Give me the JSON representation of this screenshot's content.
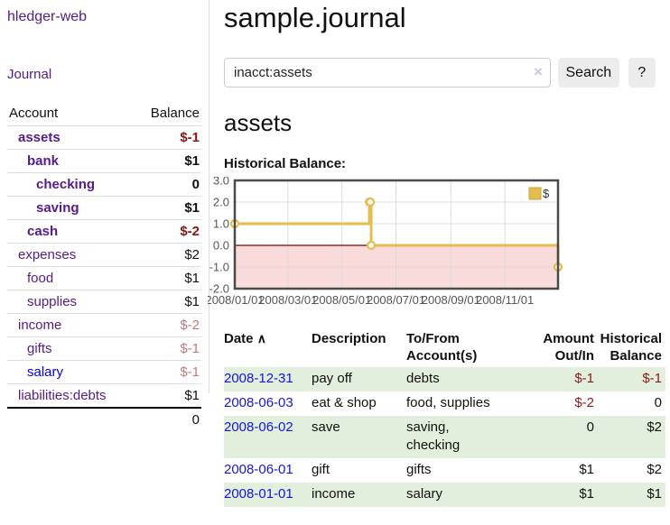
{
  "app": {
    "title": "hledger-web"
  },
  "sidebar": {
    "journal_link": "Journal",
    "headers": {
      "account": "Account",
      "balance": "Balance"
    },
    "accounts": [
      {
        "label": "assets",
        "balance": "$-1",
        "level": 1,
        "bold": true,
        "neg": true,
        "unvisited": false
      },
      {
        "label": "bank",
        "balance": "$1",
        "level": 2,
        "bold": true,
        "neg": false,
        "unvisited": false
      },
      {
        "label": "checking",
        "balance": "0",
        "level": 3,
        "bold": true,
        "neg": false,
        "unvisited": false
      },
      {
        "label": "saving",
        "balance": "$1",
        "level": 3,
        "bold": true,
        "neg": false,
        "unvisited": false
      },
      {
        "label": "cash",
        "balance": "$-2",
        "level": 2,
        "bold": true,
        "neg": true,
        "unvisited": false
      },
      {
        "label": "expenses",
        "balance": "$2",
        "level": 1,
        "bold": false,
        "neg": false,
        "unvisited": false
      },
      {
        "label": "food",
        "balance": "$1",
        "level": 2,
        "bold": false,
        "neg": false,
        "unvisited": false
      },
      {
        "label": "supplies",
        "balance": "$1",
        "level": 2,
        "bold": false,
        "neg": false,
        "unvisited": false
      },
      {
        "label": "income",
        "balance": "$-2",
        "level": 1,
        "bold": false,
        "neg": true,
        "unvisited": false
      },
      {
        "label": "gifts",
        "balance": "$-1",
        "level": 2,
        "bold": false,
        "neg": true,
        "unvisited": false
      },
      {
        "label": "salary",
        "balance": "$-1",
        "level": 2,
        "bold": false,
        "neg": true,
        "unvisited": true
      },
      {
        "label": "liabilities:debts",
        "balance": "$1",
        "level": 1,
        "bold": false,
        "neg": false,
        "unvisited": false
      }
    ],
    "total": "0"
  },
  "main": {
    "title": "sample.journal",
    "search": {
      "value": "inacct:assets",
      "clear_icon": "×",
      "button_label": "Search",
      "help_label": "?"
    },
    "account_heading": "assets",
    "chart_label": "Historical Balance:"
  },
  "chart_data": {
    "type": "line",
    "style": "step",
    "title": "Historical Balance",
    "legend": "$",
    "legend_position": "top-right",
    "series": [
      {
        "name": "$",
        "points": [
          [
            "2008-01-01",
            1
          ],
          [
            "2008-06-01",
            2
          ],
          [
            "2008-06-02",
            2
          ],
          [
            "2008-06-03",
            0
          ],
          [
            "2008-12-31",
            -1
          ]
        ]
      }
    ],
    "x_ticks": [
      "2008/01/01",
      "2008/03/01",
      "2008/05/01",
      "2008/07/01",
      "2008/09/01",
      "2008/11/01"
    ],
    "y_ticks": [
      "3.0",
      "2.0",
      "1.0",
      "0.0",
      "-1.0",
      "-2.0"
    ],
    "ylim": [
      -2,
      3
    ],
    "grid": true,
    "colors": {
      "line": "#e5bd4e",
      "marker_fill": "#ffffff",
      "negative_fill": "#fadbdb",
      "zero_line": "#8b0000",
      "border": "#4a4a4a",
      "gridline": "#d9d9d9",
      "tick_text": "#555555",
      "legend_swatch_border": "#c9a43f"
    }
  },
  "register": {
    "headers": {
      "date": "Date",
      "sort_caret": "∧",
      "description": "Description",
      "accounts": "To/From Account(s)",
      "amount": "Amount Out/In",
      "balance": "Historical Balance"
    },
    "rows": [
      {
        "date": "2008-12-31",
        "description": "pay off",
        "accounts": "debts",
        "amount": "$-1",
        "amount_neg": true,
        "balance": "$-1",
        "balance_neg": true,
        "shaded": true
      },
      {
        "date": "2008-06-03",
        "description": "eat & shop",
        "accounts": "food, supplies",
        "amount": "$-2",
        "amount_neg": true,
        "balance": "0",
        "balance_neg": false,
        "shaded": false
      },
      {
        "date": "2008-06-02",
        "description": "save",
        "accounts": "saving,\nchecking",
        "amount": "0",
        "amount_neg": false,
        "balance": "$2",
        "balance_neg": false,
        "shaded": true
      },
      {
        "date": "2008-06-01",
        "description": "gift",
        "accounts": "gifts",
        "amount": "$1",
        "amount_neg": false,
        "balance": "$2",
        "balance_neg": false,
        "shaded": false
      },
      {
        "date": "2008-01-01",
        "description": "income",
        "accounts": "salary",
        "amount": "$1",
        "amount_neg": false,
        "balance": "$1",
        "balance_neg": false,
        "shaded": true
      }
    ]
  }
}
